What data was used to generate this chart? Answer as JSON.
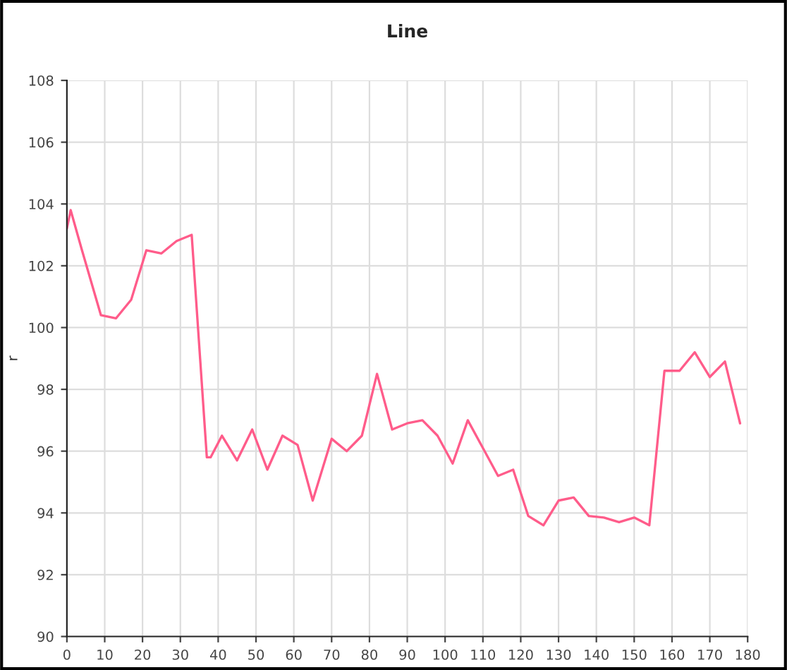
{
  "chart_data": {
    "type": "line",
    "title": "Line",
    "ylabel": "r",
    "x": [
      0,
      1,
      4,
      9,
      13,
      17,
      21,
      25,
      29,
      33,
      37,
      38,
      41,
      45,
      49,
      53,
      57,
      61,
      65,
      70,
      74,
      78,
      82,
      86,
      90,
      94,
      98,
      102,
      106,
      110,
      114,
      118,
      122,
      126,
      130,
      134,
      138,
      142,
      146,
      150,
      154,
      158,
      162,
      166,
      170,
      174,
      178
    ],
    "series": [
      {
        "color": "#ff5c8a",
        "values": [
          103.2,
          103.8,
          102.5,
          100.4,
          100.3,
          100.9,
          102.5,
          102.4,
          102.8,
          103.0,
          95.8,
          95.8,
          96.5,
          95.7,
          96.7,
          95.4,
          96.5,
          96.2,
          94.4,
          96.4,
          96.0,
          96.5,
          98.5,
          96.7,
          96.9,
          97.0,
          96.5,
          95.6,
          97.0,
          96.1,
          95.2,
          95.4,
          93.9,
          93.6,
          94.4,
          94.5,
          93.9,
          93.85,
          93.7,
          93.85,
          93.6,
          98.6,
          98.6,
          99.2,
          98.4,
          98.9,
          96.9
        ]
      }
    ],
    "xlim": [
      0,
      180
    ],
    "xticks": [
      0,
      10,
      20,
      30,
      40,
      50,
      60,
      70,
      80,
      90,
      100,
      110,
      120,
      130,
      140,
      150,
      160,
      170,
      180
    ],
    "ylim": [
      90,
      108
    ],
    "yticks": [
      90,
      92,
      94,
      96,
      98,
      100,
      102,
      104,
      106,
      108
    ],
    "grid": true,
    "marker": "none",
    "line_style": "solid"
  }
}
